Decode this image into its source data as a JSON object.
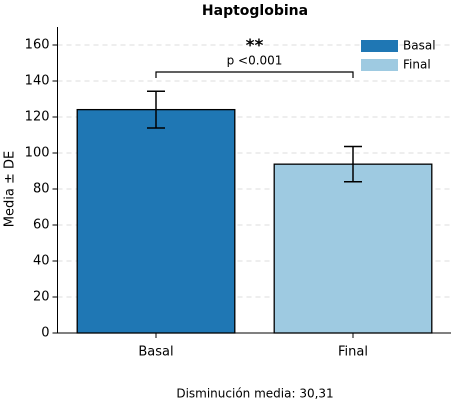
{
  "chart_data": {
    "type": "bar",
    "title": "Haptoglobina",
    "y_label": "Media ± DE",
    "categories": [
      "Basal",
      "Final"
    ],
    "values": [
      124.1,
      93.8
    ],
    "errors": [
      10.2,
      9.8
    ],
    "colors": [
      "#1f77b4",
      "#9ecae1"
    ],
    "ylim": [
      0,
      170
    ],
    "yticks": [
      0,
      20,
      40,
      60,
      80,
      100,
      120,
      140,
      160
    ],
    "grid": true,
    "legend": "upper right",
    "annotation": {
      "stars": "**",
      "text": "p <0.001"
    },
    "note": "Disminución media: 30,31"
  }
}
